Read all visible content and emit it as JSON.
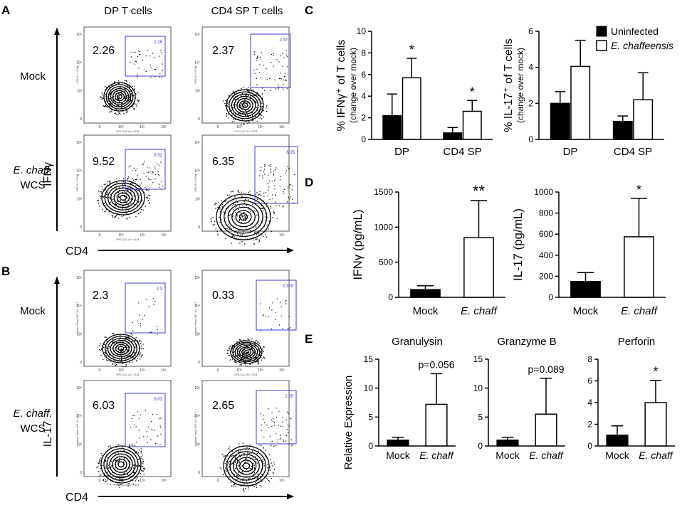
{
  "panels": {
    "A": "A",
    "B": "B",
    "C": "C",
    "D": "D",
    "E": "E"
  },
  "flow": {
    "col_titles": [
      "DP T cells",
      "CD4 SP T cells"
    ],
    "A": {
      "row_labels": [
        "Mock",
        "E. chaff.",
        "WCS"
      ],
      "y_marker": "IFNγ",
      "x_marker": "CD4",
      "plots": [
        {
          "value": "2.26",
          "gate": "2.26",
          "yaxis": "<PE-A>: IFNg",
          "xaxis": "<PE-Cy7-A>: CD4"
        },
        {
          "value": "2.37",
          "gate": "2.37",
          "yaxis": "<PE-A>: IFNg",
          "xaxis": "<PE-Cy7-A>: CD4"
        },
        {
          "value": "9.52",
          "gate": "9.52",
          "yaxis": "<PE-A>: IFNg",
          "xaxis": "<PE-Cy7-A>: CD4"
        },
        {
          "value": "6.35",
          "gate": "6.35",
          "yaxis": "<PE-A>: IFNg",
          "xaxis": "<PE-Cy7-A>: CD4"
        }
      ]
    },
    "B": {
      "row_labels": [
        "Mock",
        "E. chaff.",
        "WCS"
      ],
      "y_marker": "IL-17",
      "x_marker": "CD4",
      "plots": [
        {
          "value": "2.3",
          "gate": "2.3",
          "yaxis": "<Alexa Fluor 647-A>: IL17",
          "xaxis": "<PE-Cy7-A>: CD4"
        },
        {
          "value": "0.33",
          "gate": "0.329",
          "yaxis": "<Alexa Fluor 647-A>: IL17",
          "xaxis": "<PE-Cy7-A>: CD4"
        },
        {
          "value": "6.03",
          "gate": "6.03",
          "yaxis": "<Alexa Fluor 647-A>: IL17",
          "xaxis": "<PE-Cy7-A>: CD4"
        },
        {
          "value": "2.65",
          "gate": "2.65",
          "yaxis": "<Alexa Fluor 647-A>: IL17",
          "xaxis": "<PE-Cy7-A>: CD4"
        }
      ]
    },
    "tick_labels": [
      "0",
      "10³",
      "10⁴",
      "10⁵"
    ]
  },
  "legend": {
    "uninfected": "Uninfected",
    "echaff": "E. chaffeensis"
  },
  "chart_data": [
    {
      "id": "C1",
      "type": "bar",
      "title": "",
      "ylabel": "% IFNγ⁺ of T cells",
      "ylabel2": "(change over mock)",
      "categories": [
        "DP",
        "CD4 SP"
      ],
      "series": [
        {
          "name": "Uninfected",
          "values": [
            2.2,
            0.6
          ],
          "errors": [
            2.0,
            0.5
          ]
        },
        {
          "name": "E. chaffeensis",
          "values": [
            5.7,
            2.6
          ],
          "errors": [
            1.8,
            1.0
          ]
        }
      ],
      "ylim": [
        0,
        10
      ],
      "yticks": [
        "0",
        "2",
        "4",
        "6",
        "8",
        "10"
      ],
      "annotations": [
        "*",
        "*"
      ]
    },
    {
      "id": "C2",
      "type": "bar",
      "title": "",
      "ylabel": "% IL-17⁺ of T cells",
      "ylabel2": "(change over mock)",
      "categories": [
        "DP",
        "CD4 SP"
      ],
      "series": [
        {
          "name": "Uninfected",
          "values": [
            2.0,
            1.0
          ],
          "errors": [
            0.65,
            0.3
          ]
        },
        {
          "name": "E. chaffeensis",
          "values": [
            4.05,
            2.2
          ],
          "errors": [
            1.45,
            1.5
          ]
        }
      ],
      "ylim": [
        0,
        6
      ],
      "yticks": [
        "0",
        "2",
        "4",
        "6"
      ],
      "annotations": [
        "",
        ""
      ]
    },
    {
      "id": "D1",
      "type": "bar",
      "title": "",
      "ylabel": "IFNγ (pg/mL)",
      "categories": [
        "Mock",
        "E. chaff"
      ],
      "values": [
        110,
        850
      ],
      "errors": [
        55,
        530
      ],
      "ylim": [
        0,
        1500
      ],
      "yticks": [
        "0",
        "500",
        "1000",
        "1500"
      ],
      "annotations": [
        "",
        "**"
      ]
    },
    {
      "id": "D2",
      "type": "bar",
      "title": "",
      "ylabel": "IL-17 (pg/mL)",
      "categories": [
        "Mock",
        "E. chaff"
      ],
      "values": [
        150,
        575
      ],
      "errors": [
        85,
        365
      ],
      "ylim": [
        0,
        1000
      ],
      "yticks": [
        "0",
        "200",
        "400",
        "600",
        "800",
        "1000"
      ],
      "annotations": [
        "",
        "*"
      ]
    },
    {
      "id": "E1",
      "type": "bar",
      "title": "Granulysin",
      "ylabel": "Relative Expression",
      "categories": [
        "Mock",
        "E. chaff"
      ],
      "values": [
        1.0,
        7.2
      ],
      "errors": [
        0.5,
        5.3
      ],
      "ylim": [
        0,
        15
      ],
      "yticks": [
        "0",
        "5",
        "10",
        "15"
      ],
      "annotations": [
        "",
        "p=0.056"
      ]
    },
    {
      "id": "E2",
      "type": "bar",
      "title": "Granzyme B",
      "ylabel": "",
      "categories": [
        "Mock",
        "E. chaff"
      ],
      "values": [
        1.0,
        5.5
      ],
      "errors": [
        0.5,
        6.2
      ],
      "ylim": [
        0,
        15
      ],
      "yticks": [
        "0",
        "5",
        "10",
        "15"
      ],
      "annotations": [
        "",
        "p=0.089"
      ]
    },
    {
      "id": "E3",
      "type": "bar",
      "title": "Perforin",
      "ylabel": "",
      "categories": [
        "Mock",
        "E. chaff"
      ],
      "values": [
        1.0,
        4.0
      ],
      "errors": [
        0.85,
        2.05
      ],
      "ylim": [
        0,
        8
      ],
      "yticks": [
        "0",
        "2",
        "4",
        "6",
        "8"
      ],
      "annotations": [
        "",
        "*"
      ]
    }
  ]
}
